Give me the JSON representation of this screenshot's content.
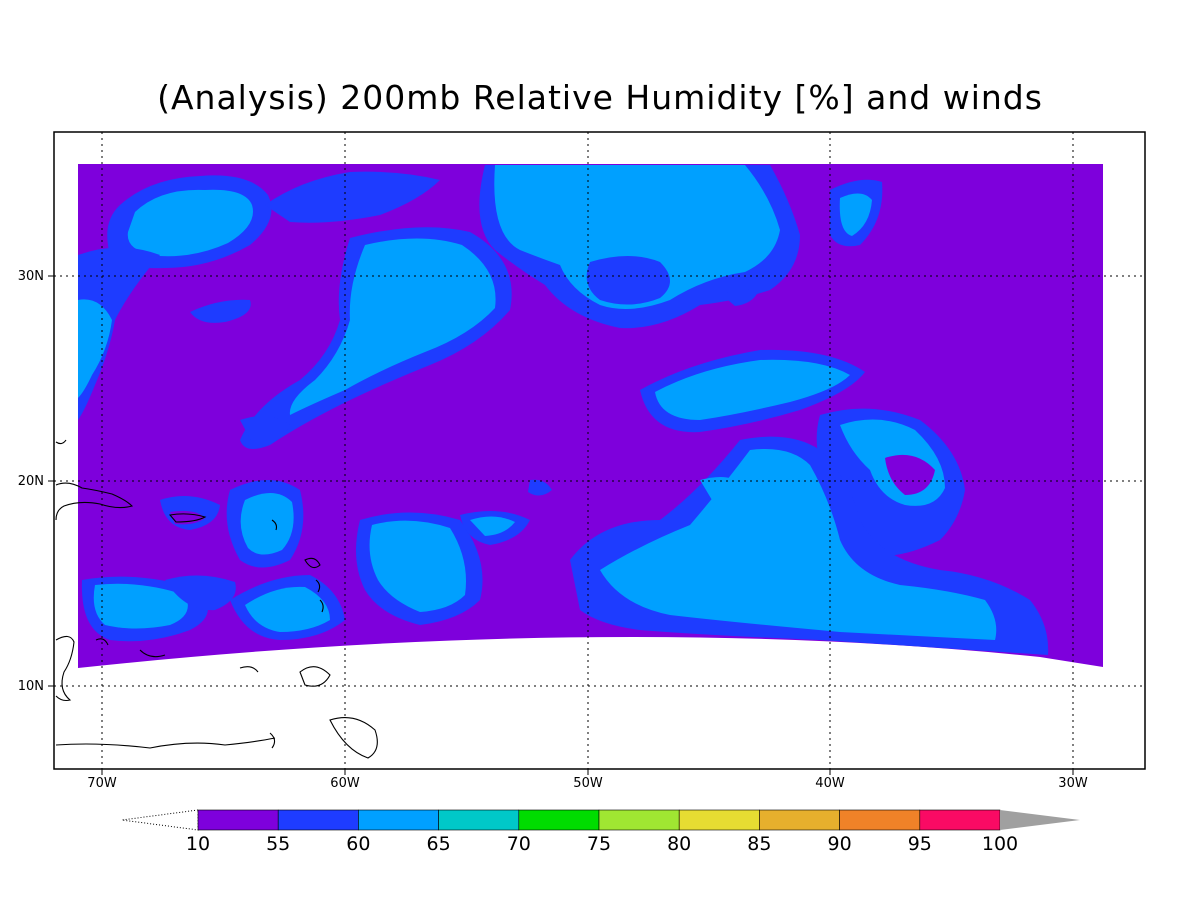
{
  "title": "(Analysis) 200mb Relative Humidity [%] and winds",
  "map": {
    "lon_range": [
      -72,
      -27
    ],
    "lat_range": [
      6,
      37
    ],
    "lon_ticks": [
      {
        "v": -70,
        "label": "70W"
      },
      {
        "v": -60,
        "label": "60W"
      },
      {
        "v": -50,
        "label": "50W"
      },
      {
        "v": -40,
        "label": "40W"
      },
      {
        "v": -30,
        "label": "30W"
      }
    ],
    "lat_ticks": [
      {
        "v": 10,
        "label": "10N"
      },
      {
        "v": 20,
        "label": "20N"
      },
      {
        "v": 30,
        "label": "30N"
      }
    ],
    "grid": true
  },
  "colorbar": {
    "labels": [
      "10",
      "55",
      "60",
      "65",
      "70",
      "75",
      "80",
      "85",
      "90",
      "95",
      "100"
    ],
    "colors": [
      "#7e00dc",
      "#1e3cff",
      "#00a0ff",
      "#00c8c8",
      "#00dc00",
      "#a0e632",
      "#e6dc32",
      "#e6af2d",
      "#f08228",
      "#fa0a64",
      "#a0a0a0"
    ]
  }
}
